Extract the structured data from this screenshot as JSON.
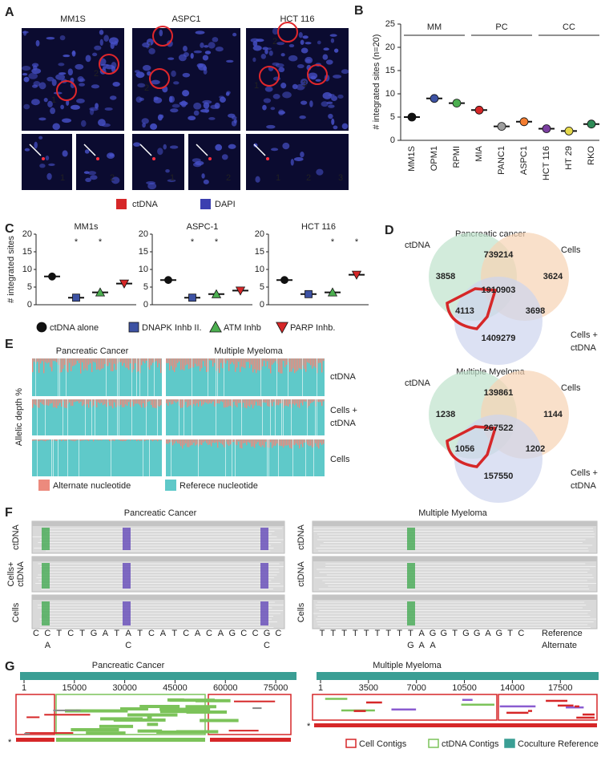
{
  "panel_labels": [
    "A",
    "B",
    "C",
    "D",
    "E",
    "F",
    "G"
  ],
  "panel_a": {
    "titles": [
      "MM1S",
      "ASPC1",
      "HCT 116"
    ],
    "image_labels": [
      [
        "1",
        "2"
      ],
      [
        "1",
        "2"
      ],
      [
        "2",
        "1",
        "3"
      ]
    ],
    "inset_labels": [
      "1",
      "2",
      "1",
      "2",
      "1",
      "2",
      "3"
    ],
    "legend": [
      {
        "name": "ctDNA",
        "color": "#d62728"
      },
      {
        "name": "DAPI",
        "color": "#3b3fb0"
      }
    ]
  },
  "chart_data": [
    {
      "type": "strip",
      "ylabel": "# integrated sites (n=20)",
      "ylim": [
        0,
        25
      ],
      "yticks": [
        0,
        5,
        10,
        15,
        20,
        25
      ],
      "groups": [
        {
          "name": "MM",
          "categories": [
            "MM1S",
            "OPM1",
            "RPMI"
          ],
          "colors": [
            "#111111",
            "#3d52a3",
            "#4caf50"
          ],
          "values": [
            5,
            9,
            8
          ]
        },
        {
          "name": "PC",
          "categories": [
            "MIA",
            "PANC1",
            "ASPC1"
          ],
          "colors": [
            "#d62728",
            "#9e9e9e",
            "#f47d30"
          ],
          "values": [
            6.5,
            3,
            4
          ]
        },
        {
          "name": "CC",
          "categories": [
            "HCT 116",
            "HT 29",
            "RKO"
          ],
          "colors": [
            "#7b3fa0",
            "#e5d84a",
            "#2e8b57"
          ],
          "values": [
            2.5,
            2,
            3.5
          ]
        }
      ]
    },
    {
      "type": "strip",
      "title": "MM1s",
      "ylabel": "# integrated sites",
      "ylim": [
        0,
        20
      ],
      "yticks": [
        0,
        5,
        10,
        15,
        20
      ],
      "values": [
        8,
        2,
        3.5,
        6
      ],
      "annotations": [
        null,
        "*",
        "*",
        null
      ]
    },
    {
      "type": "strip",
      "title": "ASPC-1",
      "ylim": [
        0,
        20
      ],
      "yticks": [
        0,
        5,
        10,
        15,
        20
      ],
      "values": [
        7,
        2,
        3,
        4
      ],
      "annotations": [
        null,
        "*",
        "*",
        null
      ]
    },
    {
      "type": "strip",
      "title": "HCT 116",
      "ylim": [
        0,
        20
      ],
      "yticks": [
        0,
        5,
        10,
        15,
        20
      ],
      "values": [
        7,
        3,
        3.5,
        8.5
      ],
      "annotations": [
        null,
        null,
        "*",
        "*"
      ]
    }
  ],
  "panel_c_legend": [
    {
      "name": "ctDNA alone",
      "color": "#111111",
      "marker": "circle"
    },
    {
      "name": "DNAPK Inhb II.",
      "color": "#3d52a3",
      "marker": "square"
    },
    {
      "name": "ATM Inhb",
      "color": "#4caf50",
      "marker": "triangle-up"
    },
    {
      "name": "PARP Inhb.",
      "color": "#d62728",
      "marker": "triangle-down"
    }
  ],
  "panel_d": [
    {
      "title": "Pancreatic cancer",
      "labels": [
        "ctDNA",
        "Cells",
        "Cells +",
        "ctDNA"
      ],
      "regions": [
        739214,
        3858,
        3624,
        1910903,
        4113,
        3698,
        1409279
      ]
    },
    {
      "title": "Multiple Myeloma",
      "labels": [
        "ctDNA",
        "Cells",
        "Cells +",
        "ctDNA"
      ],
      "regions": [
        139861,
        1238,
        1144,
        267522,
        1056,
        1202,
        157550
      ]
    }
  ],
  "panel_e": {
    "titles": [
      "Pancreatic Cancer",
      "Multiple Myeloma"
    ],
    "ylabel": "Allelic depth %",
    "row_labels": [
      "ctDNA",
      "Cells +",
      "ctDNA",
      "Cells"
    ],
    "legend": [
      {
        "name": "Alternate nucleotide",
        "color": "#ec8a7d"
      },
      {
        "name": "Referece nucleotide",
        "color": "#5fc9c9"
      }
    ]
  },
  "panel_f": {
    "titles": [
      "Pancreatic Cancer",
      "Multiple Myeloma"
    ],
    "row_labels": [
      "ctDNA",
      "Cells+",
      "ctDNA",
      "Cells"
    ],
    "pc_reference": [
      "C",
      "C",
      "T",
      "C",
      "T",
      "G",
      "A",
      "T",
      "A",
      "T",
      "C",
      "A",
      "T",
      "C",
      "A",
      "C",
      "A",
      "G",
      "C",
      "C",
      "G",
      "C"
    ],
    "pc_alternate": [
      null,
      "A",
      null,
      null,
      null,
      null,
      null,
      null,
      "C",
      null,
      null,
      null,
      null,
      null,
      null,
      null,
      null,
      null,
      null,
      null,
      "C",
      null
    ],
    "mm_reference": [
      "T",
      "T",
      "T",
      "T",
      "T",
      "T",
      "T",
      "T",
      "T",
      "A",
      "G",
      "G",
      "T",
      "G",
      "G",
      "A",
      "G",
      "T",
      "C"
    ],
    "mm_alternate": [
      null,
      null,
      null,
      null,
      null,
      null,
      null,
      null,
      "G",
      "A",
      "A",
      null,
      null,
      null,
      null,
      null,
      null,
      null,
      null
    ],
    "reference_label": "Reference",
    "alternate_label": "Alternate"
  },
  "panel_g": {
    "titles": [
      "Pancreatic Cancer",
      "Multiple Myeloma"
    ],
    "pc_xlim": [
      1,
      80000
    ],
    "pc_xticks": [
      1,
      15000,
      30000,
      45000,
      60000,
      75000
    ],
    "mm_xlim": [
      1,
      20000
    ],
    "mm_xticks": [
      1,
      3500,
      7000,
      10500,
      14000,
      17500
    ],
    "asterisk": "*",
    "legend": [
      {
        "name": "Cell Contigs",
        "color": "#d62728"
      },
      {
        "name": "ctDNA Contigs",
        "color": "#7cc35a"
      },
      {
        "name": "Coculture Reference",
        "color": "#3a9e94"
      }
    ]
  }
}
